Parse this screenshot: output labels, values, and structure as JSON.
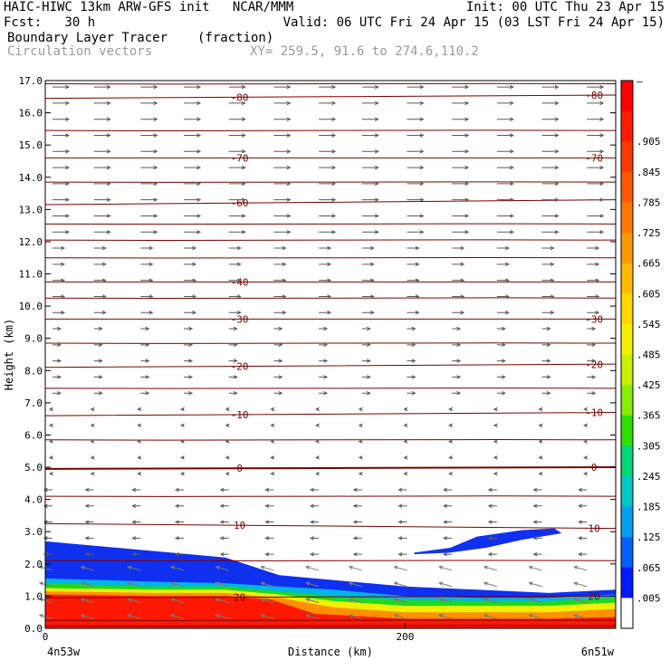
{
  "header": {
    "title_left": "HAIC-HIWC 13km ARW-GFS init   NCAR/MMM",
    "init": "Init: 00 UTC Thu 23 Apr 15",
    "fcst": "Fcst:   30 h",
    "valid": "Valid: 06 UTC Fri 24 Apr 15 (03 LST Fri 24 Apr 15)",
    "field": "Boundary Layer Tracer",
    "field_units": "(fraction)",
    "vectors": "Circulation vectors",
    "xy": "XY= 259.5, 91.6 to 274.6,110.2"
  },
  "chart_data": {
    "type": "heatmap",
    "xlabel": "Distance (km)",
    "ylabel": "Height (km)",
    "xlim": [
      0,
      317
    ],
    "ylim": [
      0,
      17
    ],
    "x_ticks": [
      0,
      200
    ],
    "x_tick_labels": [
      "0",
      "200"
    ],
    "x_end_labels": {
      "left": "4n53w",
      "right": "6n51w"
    },
    "y_ticks": [
      0.0,
      1.0,
      2.0,
      3.0,
      4.0,
      5.0,
      6.0,
      7.0,
      8.0,
      9.0,
      10.0,
      11.0,
      12.0,
      13.0,
      14.0,
      15.0,
      16.0,
      17.0
    ],
    "y_tick_labels": [
      "0.0",
      "1.0",
      "2.0",
      "3.0",
      "4.0",
      "5.0",
      "6.0",
      "7.0",
      "8.0",
      "9.0",
      "10.0",
      "11.0",
      "12.0",
      "13.0",
      "14.0",
      "15.0",
      "16.0",
      "17.0"
    ],
    "colorbar": {
      "labels": [
        "–",
        ".905",
        ".845",
        ".785",
        ".725",
        ".665",
        ".605",
        ".545",
        ".485",
        ".425",
        ".365",
        ".305",
        ".245",
        ".185",
        ".125",
        ".065",
        ".005"
      ],
      "colors": [
        "#ff0000",
        "#ff1a00",
        "#ff3a00",
        "#ff5800",
        "#ff7800",
        "#ff9900",
        "#ffba00",
        "#ffd800",
        "#f6f000",
        "#c8f000",
        "#86ee00",
        "#2ee000",
        "#00d878",
        "#00c8c8",
        "#00a0f0",
        "#0060ff",
        "#0018ff",
        "#ffffff"
      ]
    },
    "tracer_layers": [
      {
        "name": "blue",
        "color": "#1030f0",
        "top": [
          [
            0,
            2.7
          ],
          [
            40,
            2.5
          ],
          [
            80,
            2.3
          ],
          [
            100,
            2.2
          ],
          [
            130,
            1.65
          ],
          [
            160,
            1.5
          ],
          [
            200,
            1.3
          ],
          [
            240,
            1.2
          ],
          [
            280,
            1.1
          ],
          [
            317,
            1.2
          ]
        ],
        "bottom": [
          [
            0,
            0
          ],
          [
            317,
            0
          ]
        ]
      },
      {
        "name": "cyan",
        "color": "#00b4e8",
        "top": [
          [
            0,
            1.55
          ],
          [
            60,
            1.45
          ],
          [
            100,
            1.4
          ],
          [
            130,
            1.3
          ],
          [
            160,
            1.2
          ],
          [
            200,
            1.0
          ],
          [
            240,
            0.95
          ],
          [
            280,
            0.95
          ],
          [
            317,
            1.05
          ]
        ],
        "bottom": [
          [
            0,
            0
          ],
          [
            317,
            0
          ]
        ]
      },
      {
        "name": "green",
        "color": "#20d820",
        "top": [
          [
            0,
            1.4
          ],
          [
            60,
            1.3
          ],
          [
            100,
            1.3
          ],
          [
            130,
            1.15
          ],
          [
            160,
            1.0
          ],
          [
            200,
            0.88
          ],
          [
            240,
            0.85
          ],
          [
            280,
            0.85
          ],
          [
            317,
            0.95
          ]
        ],
        "bottom": [
          [
            0,
            0
          ],
          [
            317,
            0
          ]
        ]
      },
      {
        "name": "yellow",
        "color": "#f0f000",
        "top": [
          [
            0,
            1.25
          ],
          [
            60,
            1.2
          ],
          [
            100,
            1.2
          ],
          [
            130,
            1.05
          ],
          [
            160,
            0.85
          ],
          [
            200,
            0.7
          ],
          [
            240,
            0.7
          ],
          [
            280,
            0.7
          ],
          [
            317,
            0.8
          ]
        ],
        "bottom": [
          [
            0,
            0
          ],
          [
            317,
            0
          ]
        ]
      },
      {
        "name": "orange",
        "color": "#ff9000",
        "top": [
          [
            0,
            1.15
          ],
          [
            60,
            1.1
          ],
          [
            100,
            1.1
          ],
          [
            130,
            0.95
          ],
          [
            160,
            0.65
          ],
          [
            200,
            0.5
          ],
          [
            240,
            0.5
          ],
          [
            280,
            0.5
          ],
          [
            317,
            0.6
          ]
        ],
        "bottom": [
          [
            0,
            0
          ],
          [
            317,
            0
          ]
        ]
      },
      {
        "name": "red",
        "color": "#ff1800",
        "top": [
          [
            0,
            1.05
          ],
          [
            60,
            1.0
          ],
          [
            100,
            1.0
          ],
          [
            125,
            0.9
          ],
          [
            150,
            0.45
          ],
          [
            200,
            0.3
          ],
          [
            240,
            0.3
          ],
          [
            280,
            0.3
          ],
          [
            317,
            0.35
          ]
        ],
        "bottom": [
          [
            0,
            0
          ],
          [
            317,
            0
          ]
        ]
      }
    ],
    "tracer_blobs": [
      {
        "color": "#1030f0",
        "points": [
          [
            205,
            2.35
          ],
          [
            225,
            2.5
          ],
          [
            240,
            2.85
          ],
          [
            265,
            3.05
          ],
          [
            283,
            3.1
          ],
          [
            287,
            2.95
          ],
          [
            265,
            2.75
          ],
          [
            245,
            2.5
          ],
          [
            225,
            2.35
          ],
          [
            205,
            2.3
          ]
        ]
      }
    ],
    "isotherms": [
      {
        "label": "-80",
        "y": 16.45,
        "y_right": 16.55,
        "label_x": [
          108,
          305
        ],
        "bold": false
      },
      {
        "label": "-70",
        "y": 14.6,
        "y_right": 14.6,
        "label_x": [
          108,
          305
        ],
        "bold": false
      },
      {
        "label": "-60",
        "y": 13.15,
        "y_right": 13.3,
        "label_x": [
          108
        ],
        "bold": false
      },
      {
        "label": "-40",
        "y": 10.75,
        "y_right": 10.75,
        "label_x": [
          108
        ],
        "bold": false
      },
      {
        "label": "-30",
        "y": 9.6,
        "y_right": 9.6,
        "label_x": [
          108,
          305
        ],
        "bold": false
      },
      {
        "label": "-20",
        "y": 8.1,
        "y_right": 8.2,
        "label_x": [
          108,
          305
        ],
        "bold": false
      },
      {
        "label": "-10",
        "y": 6.6,
        "y_right": 6.7,
        "label_x": [
          108,
          305
        ],
        "bold": false
      },
      {
        "label": "0",
        "y": 4.95,
        "y_right": 5.0,
        "label_x": [
          108,
          305
        ],
        "bold": true
      },
      {
        "label": "10",
        "y": 3.25,
        "y_right": 3.1,
        "label_x": [
          108,
          305
        ],
        "bold": false
      },
      {
        "label": "20",
        "y": 0.95,
        "y_right": 1.0,
        "label_x": [
          108,
          305
        ],
        "bold": false
      }
    ],
    "unlabeled_isotherm_heights": [
      16.9,
      15.45,
      13.85,
      12.55,
      12.05,
      11.5,
      10.25,
      8.85,
      7.45,
      5.85,
      4.1,
      2.1,
      0.25,
      0.08
    ],
    "vector_columns": [
      4,
      27,
      53,
      77,
      102,
      127,
      152,
      176,
      201,
      226,
      251,
      276,
      301
    ],
    "vector_rows": [
      16.8,
      16.3,
      15.8,
      15.3,
      14.8,
      14.3,
      13.8,
      13.3,
      12.8,
      12.3,
      11.8,
      11.3,
      10.8,
      10.3,
      9.8,
      9.3,
      8.8,
      8.3,
      7.8,
      7.3,
      6.8,
      6.3,
      5.8,
      5.3,
      4.8,
      4.3,
      3.8,
      3.3,
      2.8,
      2.3,
      1.8,
      1.3,
      0.8,
      0.3
    ]
  }
}
